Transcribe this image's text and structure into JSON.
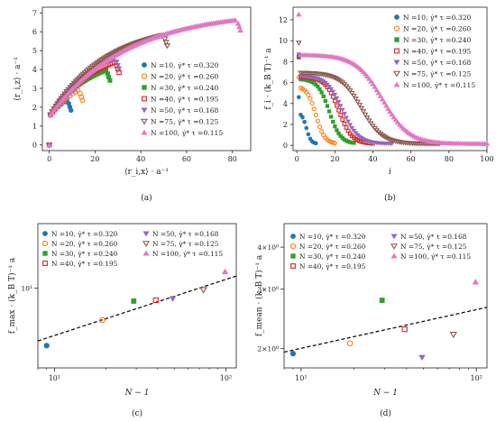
{
  "series_styles": [
    {
      "color": "#1f77b4",
      "marker": "circle-filled"
    },
    {
      "color": "#ff7f0e",
      "marker": "circle-open"
    },
    {
      "color": "#2ca02c",
      "marker": "square-filled"
    },
    {
      "color": "#d62728",
      "marker": "square-open"
    },
    {
      "color": "#9467bd",
      "marker": "triangle-down-filled"
    },
    {
      "color": "#8c564b",
      "marker": "triangle-down-open"
    },
    {
      "color": "#e377c2",
      "marker": "triangle-up-filled"
    }
  ],
  "legend_labels": [
    "N =10, γ̇* τ =0.320",
    "N =20, γ̇* τ =0.260",
    "N =30, γ̇* τ =0.240",
    "N =40, γ̇* τ =0.195",
    "N =50, γ̇* τ =0.168",
    "N =75, γ̇* τ =0.125",
    "N =100, γ̇* τ =0.115"
  ],
  "chart_data": [
    {
      "panel": "(a)",
      "type": "scatter",
      "xlabel": "⟨r_i,x⟩ · a⁻¹",
      "ylabel": "⟨r_i,z⟩ · a⁻¹",
      "xlim": [
        -3,
        88
      ],
      "ylim": [
        -0.3,
        7.3
      ],
      "xticks": [
        0,
        20,
        40,
        60,
        80
      ],
      "yticks": [
        0,
        1,
        2,
        3,
        4,
        5,
        6,
        7
      ],
      "legend_position": "lower-right",
      "series": [
        {
          "N": 10,
          "A": 3.4,
          "s": 0.08,
          "xmax": 8
        },
        {
          "N": 20,
          "A": 4.1,
          "s": 0.062,
          "xmax": 13
        },
        {
          "N": 30,
          "A": 4.8,
          "s": 0.055,
          "xmax": 25
        },
        {
          "N": 40,
          "A": 5.3,
          "s": 0.05,
          "xmax": 29
        },
        {
          "N": 50,
          "A": 5.65,
          "s": 0.048,
          "xmax": 29
        },
        {
          "N": 75,
          "A": 6.5,
          "s": 0.04,
          "xmax": 50
        },
        {
          "N": 100,
          "A": 7.1,
          "s": 0.03,
          "xmax": 82
        }
      ]
    },
    {
      "panel": "(b)",
      "type": "scatter",
      "xlabel": "i",
      "ylabel": "f_i · (k_B T)⁻¹ a",
      "xlim": [
        -2,
        100
      ],
      "ylim": [
        -0.5,
        13.2
      ],
      "xticks": [
        0,
        20,
        40,
        60,
        80,
        100
      ],
      "yticks": [
        0,
        2,
        4,
        6,
        8,
        10,
        12
      ],
      "legend_position": "upper-right",
      "series": [
        {
          "N": 10,
          "first": 4.6,
          "f0": 3.0,
          "center": 5,
          "width": 1.2
        },
        {
          "N": 20,
          "first": 6.5,
          "f0": 5.5,
          "center": 10,
          "width": 2.3
        },
        {
          "N": 30,
          "first": 8.4,
          "f0": 6.2,
          "center": 17,
          "width": 3.0
        },
        {
          "N": 40,
          "first": 8.5,
          "f0": 6.4,
          "center": 22,
          "width": 3.5
        },
        {
          "N": 50,
          "first": 8.7,
          "f0": 6.5,
          "center": 24,
          "width": 4.2
        },
        {
          "N": 75,
          "first": 9.8,
          "f0": 6.8,
          "center": 34,
          "width": 5.5
        },
        {
          "N": 100,
          "first": 12.5,
          "f0": 8.5,
          "center": 45,
          "width": 7.0
        }
      ]
    },
    {
      "panel": "(c)",
      "type": "scatter",
      "xscale": "log",
      "yscale": "log",
      "xlabel": "N − 1",
      "ylabel": "f_max · (k_B T)⁻¹ a",
      "xlim": [
        8,
        115
      ],
      "ylim": [
        3.4,
        24
      ],
      "xtick_labels": [
        "10¹",
        "10²"
      ],
      "ytick_labels": [
        "10¹"
      ],
      "legend_position": "upper-center",
      "points": [
        {
          "x": 9,
          "y": 4.6
        },
        {
          "x": 19,
          "y": 6.5
        },
        {
          "x": 29,
          "y": 8.4
        },
        {
          "x": 39,
          "y": 8.5
        },
        {
          "x": 49,
          "y": 8.7
        },
        {
          "x": 74,
          "y": 9.8
        },
        {
          "x": 99,
          "y": 12.5
        }
      ],
      "fit_line": {
        "style": "dashed",
        "x": [
          8,
          115
        ],
        "y": [
          4.9,
          11.8
        ]
      }
    },
    {
      "panel": "(d)",
      "type": "scatter",
      "xscale": "log",
      "yscale": "log",
      "xlabel": "N − 1",
      "ylabel": "f_mean · (k_B T)⁻¹ a",
      "xlim": [
        8,
        115
      ],
      "ylim": [
        1.75,
        4.7
      ],
      "xtick_labels": [
        "10¹",
        "10²"
      ],
      "ytick_labels": [
        "2×10⁰",
        "3×10⁰",
        "4×10⁰"
      ],
      "legend_position": "upper-center",
      "points": [
        {
          "x": 9,
          "y": 1.93
        },
        {
          "x": 19,
          "y": 2.07
        },
        {
          "x": 29,
          "y": 2.78
        },
        {
          "x": 39,
          "y": 2.28
        },
        {
          "x": 49,
          "y": 1.88
        },
        {
          "x": 74,
          "y": 2.2
        },
        {
          "x": 99,
          "y": 3.15
        }
      ],
      "fit_line": {
        "style": "dashed",
        "x": [
          8,
          115
        ],
        "y": [
          1.95,
          2.65
        ]
      }
    }
  ]
}
